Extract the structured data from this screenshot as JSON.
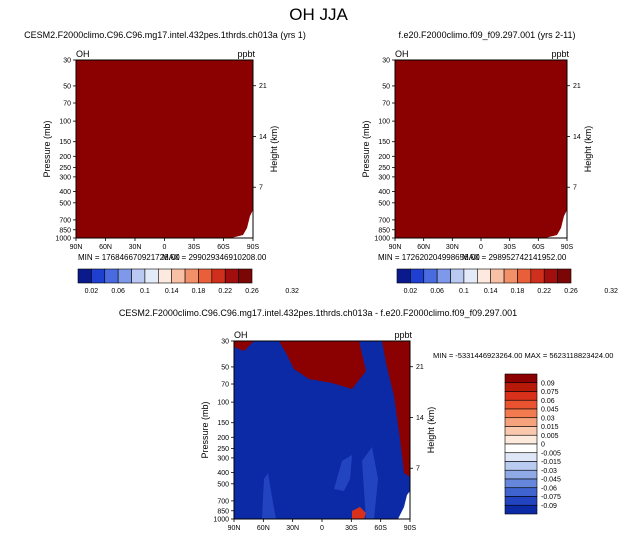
{
  "figure": {
    "title": "OH JJA"
  },
  "palette": {
    "plot_red": "#8b0000",
    "plot_blue": "#0d2aa6",
    "outline": "#000000"
  },
  "chart_data": [
    {
      "type": "heatmap",
      "id": "panel1",
      "title": "CESM2.F2000climo.C96.C96.mg17.intel.432pes.1thrds.ch013a (yrs 1)",
      "variable_label": "OH",
      "units_label": "ppbt",
      "xlabel": "",
      "ylabel": "Pressure (mb)",
      "y2label": "Height (km)",
      "x_ticks": [
        "90N",
        "60N",
        "30N",
        "0",
        "30S",
        "60S",
        "90S"
      ],
      "y_ticks": [
        "30",
        "50",
        "70",
        "100",
        "150",
        "200",
        "250",
        "300",
        "400",
        "500",
        "700",
        "850",
        "1000"
      ],
      "y2_ticks": [
        "21",
        "14",
        "7"
      ],
      "y_scale": "log",
      "fill_description_color": "#8b0000",
      "min_label": "MIN = 176846670921728.00",
      "max_label": "MAX = 299029346910208.00",
      "colorbar_labels": [
        "0.02",
        "0.06",
        "0.1",
        "0.14",
        "0.18",
        "0.22",
        "0.26",
        "0.32"
      ],
      "colorbar_colors": [
        "#0a1a8c",
        "#1f3fd1",
        "#4a6ae0",
        "#7f99ea",
        "#b9c9f2",
        "#e4ebf8",
        "#fde9dd",
        "#f8c0a4",
        "#f2906a",
        "#e85f3a",
        "#cf2f1c",
        "#a10e0e",
        "#7a0606"
      ]
    },
    {
      "type": "heatmap",
      "id": "panel2",
      "title": "f.e20.F2000climo.f09_f09.297.001 (yrs 2-11)",
      "variable_label": "OH",
      "units_label": "ppbt",
      "xlabel": "",
      "ylabel": "Pressure (mb)",
      "y2label": "Height (km)",
      "x_ticks": [
        "90N",
        "60N",
        "30N",
        "0",
        "30S",
        "60S",
        "90S"
      ],
      "y_ticks": [
        "30",
        "50",
        "70",
        "100",
        "150",
        "200",
        "250",
        "300",
        "400",
        "500",
        "700",
        "850",
        "1000"
      ],
      "y2_ticks": [
        "21",
        "14",
        "7"
      ],
      "y_scale": "log",
      "min_label": "MIN = 172620204998656.00",
      "max_label": "MAX = 298952742141952.00",
      "colorbar_labels": [
        "0.02",
        "0.06",
        "0.1",
        "0.14",
        "0.18",
        "0.22",
        "0.26",
        "0.32"
      ],
      "colorbar_colors": [
        "#0a1a8c",
        "#1f3fd1",
        "#4a6ae0",
        "#7f99ea",
        "#b9c9f2",
        "#e4ebf8",
        "#fde9dd",
        "#f8c0a4",
        "#f2906a",
        "#e85f3a",
        "#cf2f1c",
        "#a10e0e",
        "#7a0606"
      ]
    },
    {
      "type": "heatmap",
      "id": "diff",
      "title": "CESM2.F2000climo.C96.C96.mg17.intel.432pes.1thrds.ch013a - f.e20.F2000climo.f09_f09.297.001",
      "variable_label": "OH",
      "units_label": "ppbt",
      "xlabel": "",
      "ylabel": "Pressure (mb)",
      "y2label": "Height (km)",
      "x_ticks": [
        "90N",
        "60N",
        "30N",
        "0",
        "30S",
        "60S",
        "90S"
      ],
      "y_ticks": [
        "30",
        "50",
        "70",
        "100",
        "150",
        "200",
        "250",
        "300",
        "400",
        "500",
        "700",
        "850",
        "1000"
      ],
      "y2_ticks": [
        "21",
        "14",
        "7"
      ],
      "y_scale": "log",
      "min_max_label": "MIN = -5331446923264.00   MAX = 5623118823424.00",
      "colorbar_labels": [
        "0.09",
        "0.075",
        "0.06",
        "0.045",
        "0.03",
        "0.015",
        "0.005",
        "0",
        "-0.005",
        "-0.015",
        "-0.03",
        "-0.045",
        "-0.06",
        "-0.075",
        "-0.09"
      ],
      "colorbar_colors": [
        "#8b0000",
        "#b81a0a",
        "#d8301a",
        "#e9532f",
        "#f17a4f",
        "#f6a27c",
        "#f9c8ad",
        "#fdeadc",
        "#ffffff",
        "#dfe7f7",
        "#b9cbf0",
        "#8fa9e6",
        "#6586db",
        "#3f63cf",
        "#2244c0",
        "#0d2aa6"
      ]
    }
  ]
}
